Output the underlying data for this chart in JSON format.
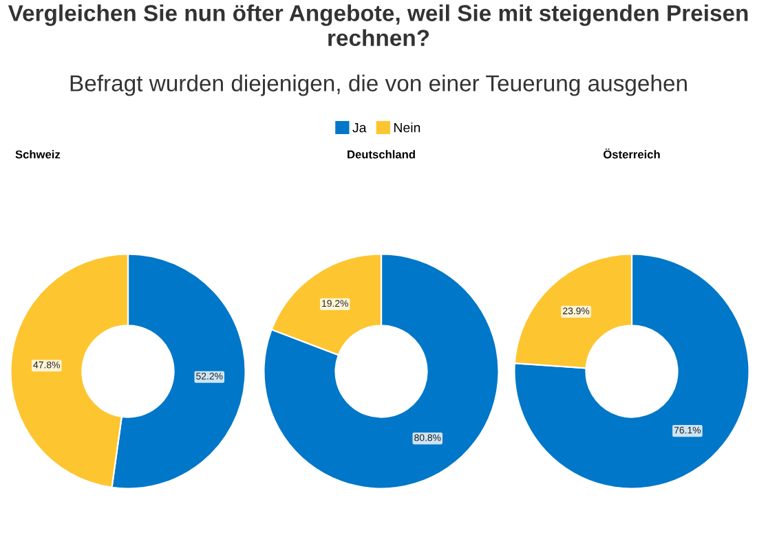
{
  "chart_data": [
    {
      "type": "donut",
      "title": "Schweiz",
      "annotations": [
        "Vergleichen Sie nun öfter Angebote, weil Sie mit steigenden Preisen rechnen?",
        "Befragt wurden diejenigen, die von einer Teuerung ausgehen"
      ],
      "legend": "top",
      "categories": [
        "Ja",
        "Nein"
      ],
      "values": [
        52.2,
        47.8
      ],
      "colors": [
        "#0077c8",
        "#fdc530"
      ],
      "value_labels": [
        "52.2%",
        "47.8%"
      ]
    },
    {
      "type": "donut",
      "title": "Deutschland",
      "categories": [
        null,
        null
      ],
      "values": [
        80.8,
        19.2
      ],
      "colors": [
        "#0077c8",
        "#fdc530"
      ],
      "value_labels": [
        "80.8%",
        "19.2%"
      ]
    },
    {
      "type": "donut",
      "title": "Österreich",
      "categories": [
        null,
        null
      ],
      "values": [
        76.1,
        23.9
      ],
      "colors": [
        "#0077c8",
        "#fdc530"
      ],
      "value_labels": [
        "76.1%",
        "23.9%"
      ]
    }
  ]
}
